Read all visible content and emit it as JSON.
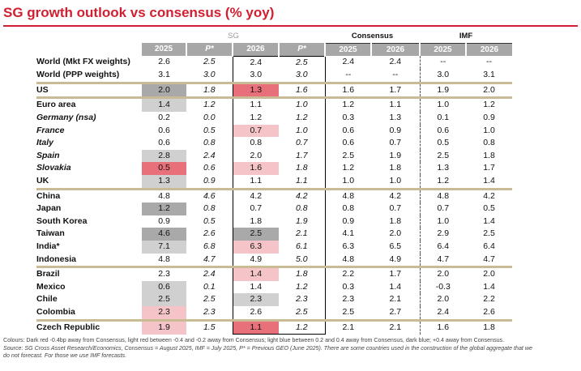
{
  "title": "SG growth outlook vs consensus (% yoy)",
  "header": {
    "group_sg": "SG",
    "group_consensus": "Consensus",
    "group_imf": "IMF",
    "years": [
      "2025",
      "P*",
      "2026",
      "P*",
      "2025",
      "2026",
      "2025",
      "2026"
    ]
  },
  "rows": [
    {
      "name": "World (Mkt FX weights)",
      "sub": false,
      "vals": [
        "2.6",
        "2.5",
        "2.4",
        "2.5",
        "2.4",
        "2.4",
        "--",
        "--"
      ]
    },
    {
      "name": "World (PPP weights)",
      "sub": false,
      "vals": [
        "3.1",
        "3.0",
        "3.0",
        "3.0",
        "--",
        "--",
        "3.0",
        "3.1"
      ]
    },
    {
      "name": "US",
      "sub": false,
      "vals": [
        "2.0",
        "1.8",
        "1.3",
        "1.6",
        "1.6",
        "1.7",
        "1.9",
        "2.0"
      ]
    },
    {
      "name": "Euro area",
      "sub": false,
      "vals": [
        "1.4",
        "1.2",
        "1.1",
        "1.0",
        "1.2",
        "1.1",
        "1.0",
        "1.2"
      ]
    },
    {
      "name": "Germany (nsa)",
      "sub": true,
      "vals": [
        "0.2",
        "0.0",
        "1.2",
        "1.2",
        "0.3",
        "1.3",
        "0.1",
        "0.9"
      ]
    },
    {
      "name": "France",
      "sub": true,
      "vals": [
        "0.6",
        "0.5",
        "0.7",
        "1.0",
        "0.6",
        "0.9",
        "0.6",
        "1.0"
      ]
    },
    {
      "name": "Italy",
      "sub": true,
      "vals": [
        "0.6",
        "0.8",
        "0.8",
        "0.7",
        "0.6",
        "0.7",
        "0.5",
        "0.8"
      ]
    },
    {
      "name": "Spain",
      "sub": true,
      "vals": [
        "2.8",
        "2.4",
        "2.0",
        "1.7",
        "2.5",
        "1.9",
        "2.5",
        "1.8"
      ]
    },
    {
      "name": "Slovakia",
      "sub": true,
      "vals": [
        "0.5",
        "0.6",
        "1.6",
        "1.8",
        "1.2",
        "1.8",
        "1.3",
        "1.7"
      ]
    },
    {
      "name": "UK",
      "sub": false,
      "vals": [
        "1.3",
        "0.9",
        "1.1",
        "1.1",
        "1.0",
        "1.0",
        "1.2",
        "1.4"
      ]
    },
    {
      "name": "China",
      "sub": false,
      "vals": [
        "4.8",
        "4.6",
        "4.2",
        "4.2",
        "4.8",
        "4.2",
        "4.8",
        "4.2"
      ]
    },
    {
      "name": "Japan",
      "sub": false,
      "vals": [
        "1.2",
        "0.8",
        "0.7",
        "0.8",
        "0.8",
        "0.7",
        "0.7",
        "0.5"
      ]
    },
    {
      "name": "South Korea",
      "sub": false,
      "vals": [
        "0.9",
        "0.5",
        "1.8",
        "1.9",
        "0.9",
        "1.8",
        "1.0",
        "1.4"
      ]
    },
    {
      "name": "Taiwan",
      "sub": false,
      "vals": [
        "4.6",
        "2.6",
        "2.5",
        "2.1",
        "4.1",
        "2.0",
        "2.9",
        "2.5"
      ]
    },
    {
      "name": "India*",
      "sub": false,
      "vals": [
        "7.1",
        "6.8",
        "6.3",
        "6.1",
        "6.3",
        "6.5",
        "6.4",
        "6.4"
      ]
    },
    {
      "name": "Indonesia",
      "sub": false,
      "vals": [
        "4.8",
        "4.7",
        "4.9",
        "5.0",
        "4.8",
        "4.9",
        "4.7",
        "4.7"
      ]
    },
    {
      "name": "Brazil",
      "sub": false,
      "vals": [
        "2.3",
        "2.4",
        "1.4",
        "1.8",
        "2.2",
        "1.7",
        "2.0",
        "2.0"
      ]
    },
    {
      "name": "Mexico",
      "sub": false,
      "vals": [
        "0.6",
        "0.1",
        "1.4",
        "1.2",
        "0.3",
        "1.4",
        "-0.3",
        "1.4"
      ]
    },
    {
      "name": "Chile",
      "sub": false,
      "vals": [
        "2.5",
        "2.5",
        "2.3",
        "2.3",
        "2.3",
        "2.1",
        "2.0",
        "2.2"
      ]
    },
    {
      "name": "Colombia",
      "sub": false,
      "vals": [
        "2.3",
        "2.3",
        "2.6",
        "2.5",
        "2.5",
        "2.7",
        "2.4",
        "2.6"
      ]
    },
    {
      "name": "Czech Republic",
      "sub": false,
      "vals": [
        "1.9",
        "1.5",
        "1.1",
        "1.2",
        "2.1",
        "2.1",
        "1.6",
        "1.8"
      ]
    }
  ],
  "colors": {
    "title": "#d11f31",
    "dark_red": "#e8707a",
    "light_red": "#f4c4c8",
    "dark_blue": "#a9a9a9",
    "light_blue": "#d0d0d0",
    "separator": "#c9bc94",
    "header_bg": "#a7a7a7",
    "selection": "#5b8fd0"
  },
  "highlights": {
    "sg2025": {
      "US": "c-db",
      "Euro area": "c-lb",
      "Spain": "c-lb",
      "Slovakia": "c-dr",
      "UK": "c-lb",
      "Japan": "c-db",
      "Taiwan": "c-db",
      "India*": "c-lb",
      "Mexico": "c-lb",
      "Chile": "c-lb",
      "Colombia": "c-lr",
      "Czech Republic": "c-lr"
    },
    "sg2026": {
      "US": "c-dr",
      "France": "c-lr",
      "Slovakia": "c-lr",
      "Taiwan": "c-db",
      "India*": "c-lr",
      "Brazil": "c-lr",
      "Chile": "c-lb",
      "Czech Republic": "c-dr"
    }
  },
  "footnote": {
    "line1": "Colours: Dark red -0.4bp away from Consensus, light red between -0.4 and -0.2 away from Consensus; light blue between 0.2 and 0.4 away from Consensus, dark blue; +0.4 away from Consensus.",
    "line2": "Source: SG Cross Asset Research/Economics, Consensus = August 2025, IMF = July 2025, P* = Previous GEO (June 2025). There are some countries used in the construction of the global aggregate that we",
    "line3": "do not forecast. For those we use IMF forecasts."
  }
}
